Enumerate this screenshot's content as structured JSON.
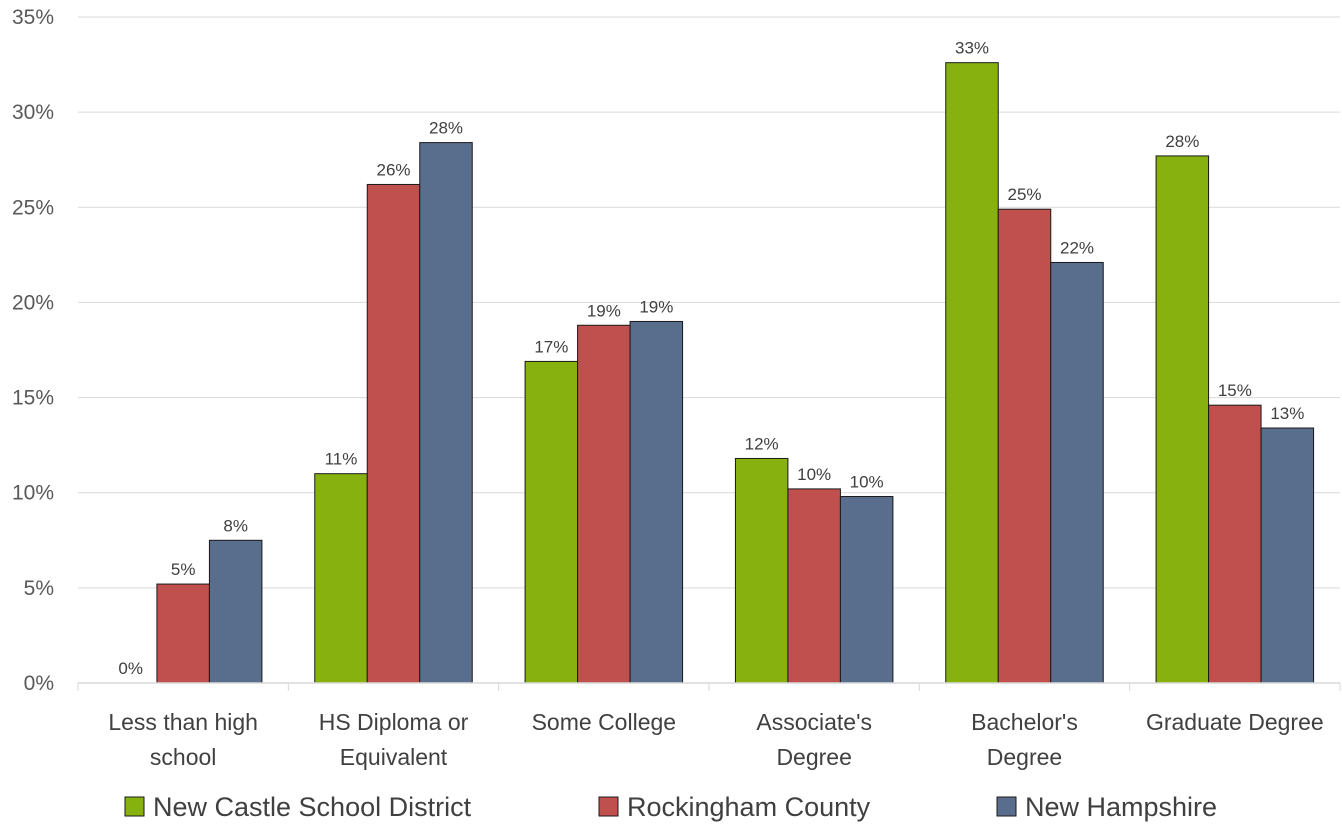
{
  "chart_data": {
    "type": "bar",
    "categories": [
      [
        "Less than high",
        "school"
      ],
      [
        "HS Diploma or",
        "Equivalent"
      ],
      [
        "Some College"
      ],
      [
        "Associate's",
        "Degree"
      ],
      [
        "Bachelor's",
        "Degree"
      ],
      [
        "Graduate Degree"
      ]
    ],
    "series": [
      {
        "name": "New Castle School District",
        "color": "#86b10f",
        "values": [
          0,
          11.0,
          16.9,
          11.8,
          32.6,
          27.7
        ],
        "labels": [
          "0%",
          "11%",
          "17%",
          "12%",
          "33%",
          "28%"
        ]
      },
      {
        "name": "Rockingham County",
        "color": "#c0504d",
        "values": [
          5.2,
          26.2,
          18.8,
          10.2,
          24.9,
          14.6
        ],
        "labels": [
          "5%",
          "26%",
          "19%",
          "10%",
          "25%",
          "15%"
        ]
      },
      {
        "name": "New Hampshire",
        "color": "#596d8c",
        "values": [
          7.5,
          28.4,
          19.0,
          9.8,
          22.1,
          13.4
        ],
        "labels": [
          "8%",
          "28%",
          "19%",
          "10%",
          "22%",
          "13%"
        ]
      }
    ],
    "yticks": [
      "0%",
      "5%",
      "10%",
      "15%",
      "20%",
      "25%",
      "30%",
      "35%"
    ],
    "ylim": [
      0,
      35
    ],
    "grid": true,
    "legend_position": "bottom"
  }
}
